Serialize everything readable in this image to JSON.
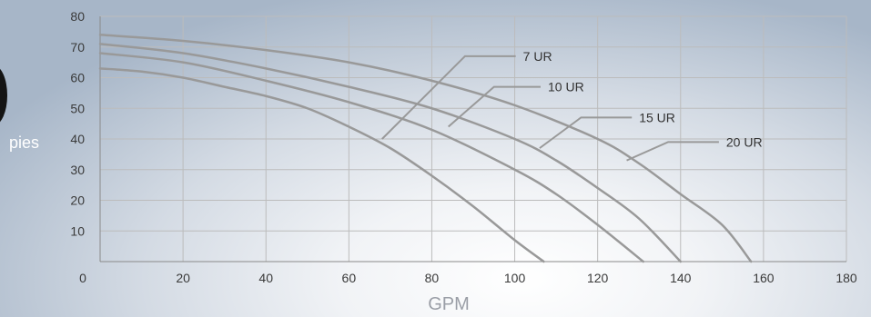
{
  "chart_data": {
    "type": "line",
    "xlabel": "GPM",
    "ylabel": "pies",
    "xlim": [
      0,
      180
    ],
    "ylim": [
      0,
      80
    ],
    "x_ticks": [
      "0",
      "20",
      "40",
      "60",
      "80",
      "100",
      "120",
      "140",
      "160",
      "180"
    ],
    "y_ticks": [
      "10",
      "20",
      "30",
      "40",
      "50",
      "60",
      "70",
      "80"
    ],
    "grid": true,
    "series": [
      {
        "name": "7 UR",
        "x": [
          0,
          10,
          20,
          30,
          40,
          50,
          60,
          70,
          80,
          90,
          100,
          107
        ],
        "y": [
          63,
          62,
          60,
          57,
          54,
          50,
          44,
          37,
          28,
          18,
          7,
          0
        ]
      },
      {
        "name": "10 UR",
        "x": [
          0,
          20,
          40,
          60,
          80,
          100,
          110,
          120,
          131
        ],
        "y": [
          68,
          65,
          59,
          52,
          43,
          30,
          22,
          12,
          0
        ]
      },
      {
        "name": "15 UR",
        "x": [
          0,
          20,
          40,
          60,
          80,
          100,
          110,
          120,
          130,
          140
        ],
        "y": [
          71,
          68,
          63,
          57,
          50,
          40,
          33,
          24,
          14,
          0
        ]
      },
      {
        "name": "20 UR",
        "x": [
          0,
          20,
          40,
          60,
          80,
          100,
          120,
          130,
          140,
          150,
          157
        ],
        "y": [
          74,
          72,
          69,
          65,
          59,
          51,
          40,
          32,
          22,
          12,
          0
        ]
      }
    ],
    "annotations": [
      {
        "label": "7 UR",
        "curve_point": [
          68,
          40
        ],
        "elbow": [
          88,
          67
        ],
        "text_at": [
          102,
          67
        ]
      },
      {
        "label": "10 UR",
        "curve_point": [
          84,
          44
        ],
        "elbow": [
          95,
          57
        ],
        "text_at": [
          108,
          57
        ]
      },
      {
        "label": "15 UR",
        "curve_point": [
          106,
          37
        ],
        "elbow": [
          116,
          47
        ],
        "text_at": [
          130,
          47
        ]
      },
      {
        "label": "20 UR",
        "curve_point": [
          127,
          33
        ],
        "elbow": [
          137,
          39
        ],
        "text_at": [
          151,
          39
        ]
      }
    ],
    "colors": {
      "curve": "#999999",
      "grid": "#bcbcbc",
      "axis": "#8a8a8a"
    }
  }
}
